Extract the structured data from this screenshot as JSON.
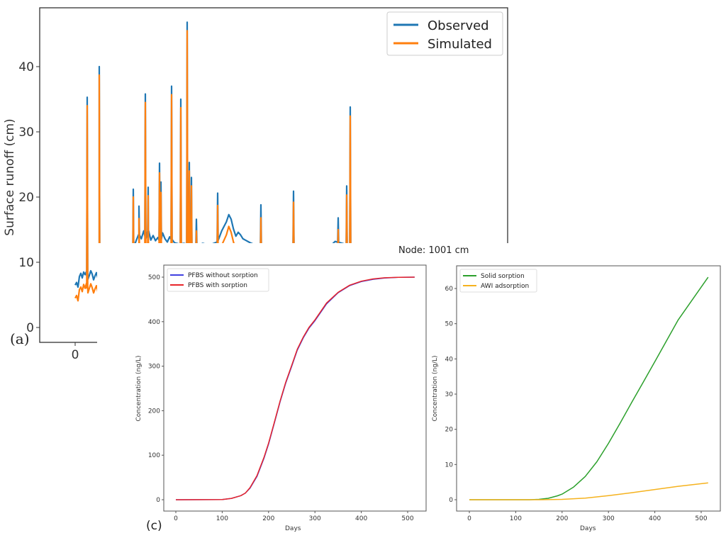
{
  "chart_data": [
    {
      "id": "a",
      "type": "line",
      "panel_label": "(a)",
      "title": "",
      "xlabel": "",
      "ylabel": "Surface runoff (cm)",
      "xlim": [
        -150,
        1830
      ],
      "ylim": [
        -2.3,
        48.5
      ],
      "yticks": [
        0,
        10,
        20,
        30,
        40
      ],
      "xticks": [
        0
      ],
      "legend": {
        "position": "top-right",
        "entries": [
          "Observed",
          "Simulated"
        ]
      },
      "colors": {
        "Observed": "#1f77b4",
        "Simulated": "#ff7f0e"
      },
      "baseline": {
        "x": [
          0,
          6,
          12,
          18,
          24,
          30,
          36,
          42,
          48,
          54,
          60,
          66,
          72,
          78,
          84,
          90,
          96,
          102,
          108,
          114,
          120,
          126,
          132,
          138,
          144,
          150,
          156,
          162,
          168,
          174,
          180,
          186,
          192,
          198,
          204,
          210,
          216,
          222,
          228,
          234,
          240,
          250,
          260,
          270,
          280,
          290,
          300,
          310,
          320,
          330,
          340,
          350,
          360,
          370,
          380,
          390,
          400,
          410,
          420,
          440,
          460,
          480,
          500,
          520,
          540,
          560,
          580,
          600,
          620,
          640,
          650,
          660,
          670,
          680,
          690,
          700,
          710,
          720,
          740,
          760,
          800,
          900,
          1000,
          1080,
          1100,
          1140,
          1160,
          1180
        ],
        "observed": [
          6.5,
          6.9,
          6.2,
          7.8,
          8.3,
          7.6,
          8.5,
          8.1,
          8.6,
          7.4,
          8.0,
          8.7,
          8.2,
          7.3,
          7.9,
          8.4,
          7.6,
          8.9,
          8.1,
          7.5,
          8.2,
          9.1,
          8.3,
          8.8,
          9.4,
          8.5,
          9.6,
          8.2,
          7.6,
          8.3,
          9.0,
          8.1,
          8.6,
          7.8,
          8.7,
          9.2,
          8.4,
          8.9,
          9.3,
          8.6,
          9.0,
          12.5,
          13.5,
          14.2,
          13.6,
          14.8,
          13.7,
          14.9,
          13.4,
          14.1,
          13.3,
          13.8,
          13.2,
          14.5,
          13.6,
          13.1,
          13.9,
          13.4,
          13.0,
          12.8,
          12.9,
          12.7,
          12.8,
          12.6,
          12.9,
          12.7,
          12.8,
          13.1,
          14.8,
          16.2,
          17.3,
          16.6,
          15.1,
          14.0,
          14.6,
          14.2,
          13.6,
          13.4,
          13.0,
          12.7,
          12.6,
          12.5,
          12.5,
          12.5,
          13.2,
          12.8,
          12.6,
          12.5
        ],
        "simulated": [
          4.5,
          4.9,
          4.1,
          5.8,
          6.2,
          5.5,
          6.6,
          6.0,
          6.8,
          5.3,
          6.0,
          6.7,
          6.1,
          5.3,
          5.9,
          6.4,
          5.5,
          6.9,
          6.0,
          5.4,
          6.1,
          7.0,
          6.2,
          6.7,
          7.3,
          6.3,
          7.4,
          6.1,
          5.6,
          6.2,
          6.9,
          6.0,
          6.4,
          5.8,
          6.5,
          7.0,
          6.3,
          6.7,
          7.1,
          6.4,
          6.9,
          10.5,
          11.6,
          12.2,
          11.6,
          12.7,
          11.8,
          12.6,
          11.4,
          12.0,
          11.3,
          11.8,
          11.2,
          12.4,
          11.6,
          11.1,
          11.9,
          11.4,
          11.0,
          10.8,
          10.9,
          10.7,
          10.8,
          10.6,
          10.9,
          10.7,
          10.8,
          11.0,
          12.6,
          14.2,
          15.5,
          14.6,
          13.1,
          12.0,
          12.6,
          12.2,
          11.6,
          11.4,
          11.0,
          10.7,
          10.6,
          10.5,
          10.5,
          10.5,
          11.2,
          10.8,
          10.6,
          10.5
        ]
      },
      "spikes": {
        "x": [
          51,
          102,
          246,
          270,
          297,
          309,
          357,
          363,
          408,
          447,
          474,
          483,
          492,
          513,
          603,
          786,
          924,
          1113,
          1149,
          1164
        ],
        "observed": [
          35.3,
          40.0,
          21.2,
          18.6,
          35.8,
          21.5,
          25.2,
          22.3,
          37.0,
          35.0,
          46.8,
          25.3,
          23.0,
          16.6,
          20.6,
          18.8,
          20.9,
          16.8,
          21.7,
          33.8
        ],
        "simulated": [
          34.0,
          38.7,
          20.0,
          16.7,
          34.5,
          20.2,
          23.7,
          20.7,
          35.7,
          33.7,
          45.5,
          24.0,
          21.7,
          14.8,
          18.7,
          16.8,
          19.2,
          15.0,
          20.3,
          32.4
        ]
      }
    },
    {
      "id": "c-left",
      "type": "line",
      "panel_label": "(c)",
      "suptitle": "Node: 1001 cm",
      "xlabel": "Days",
      "ylabel": "Concentration (ng/L)",
      "xlim": [
        -25,
        540
      ],
      "ylim": [
        -25,
        525
      ],
      "xticks": [
        0,
        100,
        200,
        300,
        400,
        500
      ],
      "yticks": [
        0,
        100,
        200,
        300,
        400,
        500
      ],
      "legend": {
        "position": "top-left"
      },
      "series": [
        {
          "name": "PFBS without sorption",
          "color": "#4040e0",
          "x": [
            0,
            100,
            120,
            140,
            150,
            160,
            175,
            190,
            200,
            212,
            225,
            237,
            250,
            262,
            275,
            287,
            300,
            325,
            350,
            375,
            400,
            425,
            450,
            480,
            515
          ],
          "y": [
            0,
            0.5,
            3,
            9,
            15,
            26,
            52,
            93,
            125,
            170,
            220,
            262,
            300,
            336,
            364,
            385,
            402,
            440,
            465,
            481,
            490,
            495,
            498,
            499.5,
            500
          ]
        },
        {
          "name": "PFBS with sorption",
          "color": "#e8252a",
          "x": [
            0,
            100,
            120,
            140,
            150,
            160,
            175,
            190,
            200,
            212,
            225,
            237,
            250,
            262,
            275,
            287,
            300,
            325,
            350,
            375,
            400,
            425,
            450,
            480,
            515
          ],
          "y": [
            0,
            0.5,
            3,
            9,
            15,
            27,
            54,
            95,
            127,
            172,
            222,
            264,
            302,
            338,
            366,
            387,
            404,
            442,
            466,
            482,
            491,
            496,
            498.5,
            499.7,
            500
          ]
        }
      ]
    },
    {
      "id": "c-right",
      "type": "line",
      "xlabel": "Days",
      "ylabel": "Concentration (ng/L)",
      "xlim": [
        -25,
        540
      ],
      "ylim": [
        -3.2,
        66
      ],
      "xticks": [
        0,
        100,
        200,
        300,
        400,
        500
      ],
      "yticks": [
        0,
        10,
        20,
        30,
        40,
        50,
        60
      ],
      "legend": {
        "position": "top-left"
      },
      "series": [
        {
          "name": "Solid sorption",
          "color": "#2ca02c",
          "x": [
            0,
            130,
            150,
            170,
            190,
            200,
            225,
            250,
            275,
            300,
            325,
            350,
            375,
            400,
            450,
            515
          ],
          "y": [
            0,
            0,
            0.1,
            0.4,
            1.1,
            1.6,
            3.6,
            6.6,
            10.8,
            16,
            21.7,
            27.6,
            33.4,
            39.2,
            51,
            63.2
          ]
        },
        {
          "name": "AWI adsorption",
          "color": "#f5b21e",
          "x": [
            0,
            150,
            200,
            250,
            300,
            350,
            400,
            450,
            515
          ],
          "y": [
            0,
            0,
            0.1,
            0.45,
            1.15,
            2.0,
            2.9,
            3.8,
            4.8
          ]
        }
      ]
    }
  ]
}
